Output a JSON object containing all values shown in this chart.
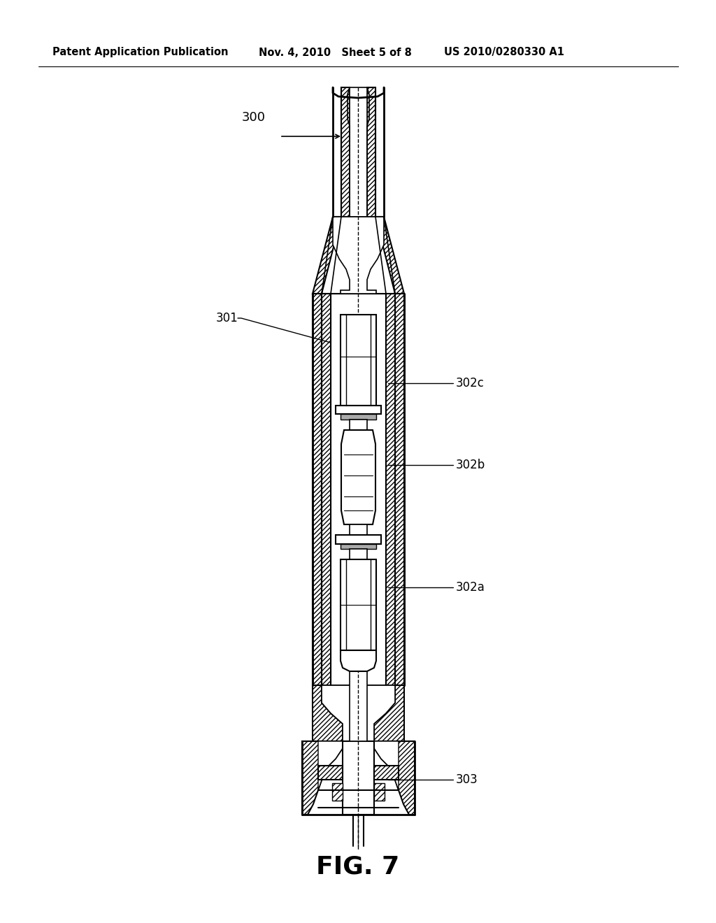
{
  "title": "FIG. 7",
  "header_left": "Patent Application Publication",
  "header_mid": "Nov. 4, 2010   Sheet 5 of 8",
  "header_right": "US 2010/0280330 A1",
  "bg_color": "#ffffff",
  "line_color": "#000000",
  "label_300": "300",
  "label_301": "301",
  "label_302a": "302a",
  "label_302b": "302b",
  "label_302c": "302c",
  "label_303": "303"
}
